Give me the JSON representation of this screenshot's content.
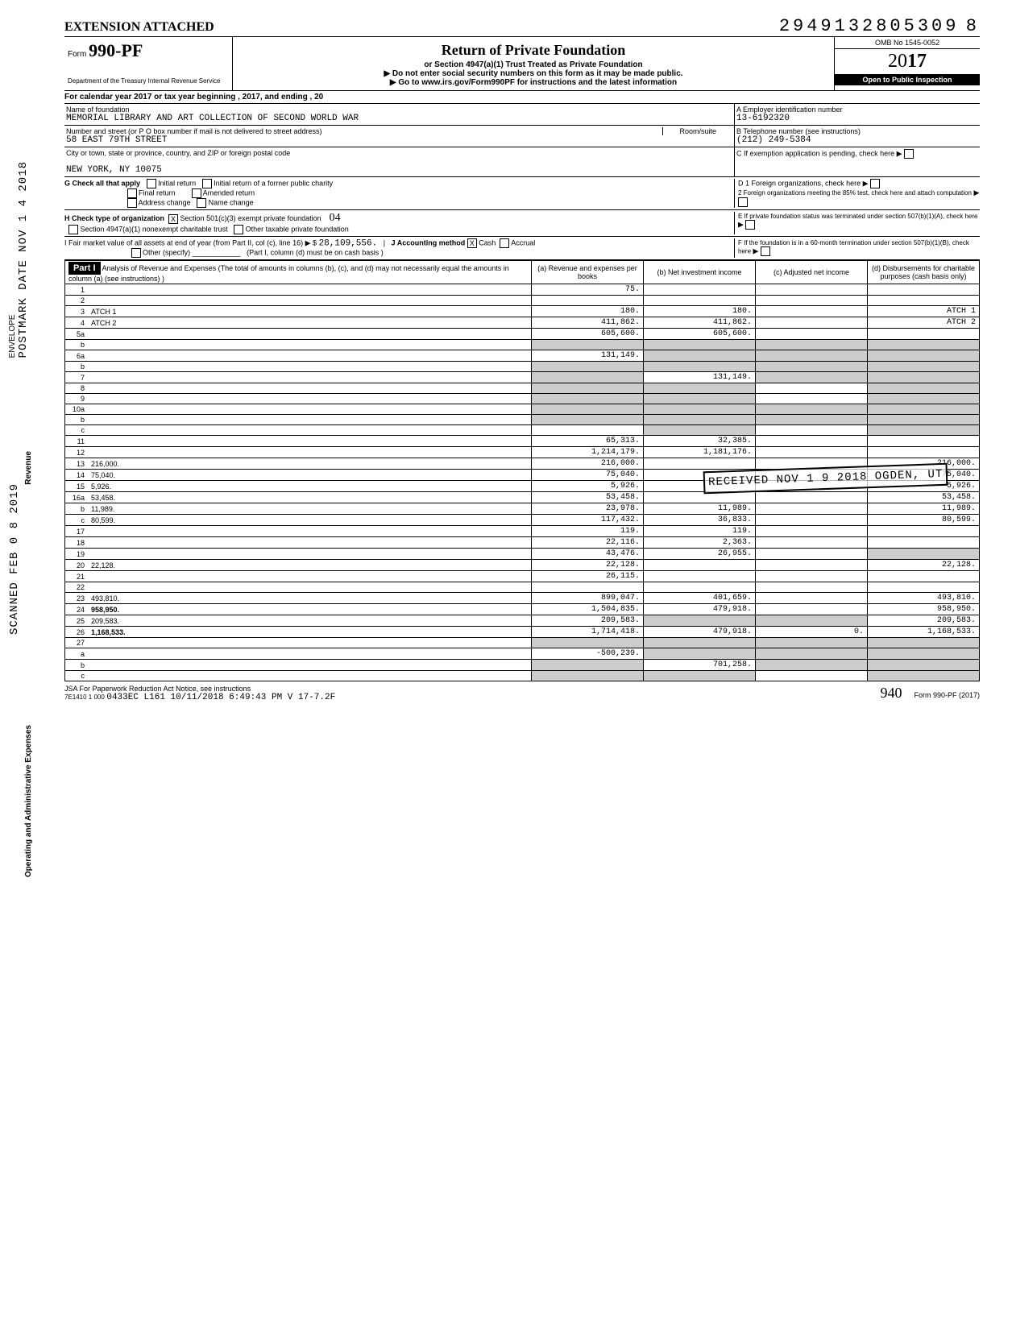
{
  "header": {
    "extension": "EXTENSION ATTACHED",
    "dln": "2949132805309",
    "dln_suffix": "8",
    "form_prefix": "Form",
    "form_num": "990-PF",
    "dept": "Department of the Treasury\nInternal Revenue Service",
    "title": "Return of Private Foundation",
    "subtitle1": "or Section 4947(a)(1) Trust Treated as Private Foundation",
    "subtitle2": "▶ Do not enter social security numbers on this form as it may be made public.",
    "subtitle3": "▶ Go to www.irs.gov/Form990PF for instructions and the latest information",
    "omb": "OMB No 1545-0052",
    "year_prefix": "20",
    "year_bold": "17",
    "inspection": "Open to Public Inspection"
  },
  "cal_year": "For calendar year 2017 or tax year beginning                                    , 2017, and ending                                    , 20",
  "name": {
    "label": "Name of foundation",
    "value": "MEMORIAL LIBRARY AND ART COLLECTION OF SECOND WORLD WAR",
    "ein_label": "A  Employer identification number",
    "ein": "13-6192320"
  },
  "addr": {
    "label": "Number and street (or P O box number if mail is not delivered to street address)",
    "room_label": "Room/suite",
    "street": "58 EAST 79TH STREET",
    "tel_label": "B  Telephone number (see instructions)",
    "tel": "(212) 249-5384",
    "city_label": "City or town, state or province, country, and ZIP or foreign postal code",
    "city": "NEW YORK, NY 10075",
    "c_label": "C  If exemption application is pending, check here"
  },
  "g": {
    "label": "G  Check all that apply",
    "initial": "Initial return",
    "initial_former": "Initial return of a former public charity",
    "final": "Final return",
    "amended": "Amended return",
    "addr_change": "Address change",
    "name_change": "Name change",
    "d1": "D  1 Foreign organizations, check here",
    "d2": "2 Foreign organizations meeting the 85% test, check here and attach computation"
  },
  "h": {
    "label": "H  Check type of organization",
    "x": "X",
    "s501": "Section 501(c)(3) exempt private foundation",
    "s4947": "Section 4947(a)(1) nonexempt charitable trust",
    "other": "Other taxable private foundation",
    "e_label": "E  If private foundation status was terminated under section 507(b)(1)(A), check here"
  },
  "i": {
    "label": "I  Fair market value of all assets at end of year (from Part II, col (c), line 16) ▶ $",
    "value": "28,109,556.",
    "j_label": "J Accounting method",
    "cash": "Cash",
    "cash_x": "X",
    "accrual": "Accrual",
    "other": "Other (specify)",
    "note": "(Part I, column (d) must be on cash basis )",
    "f_label": "F  If the foundation is in a 60‑month termination under section 507(b)(1)(B), check here"
  },
  "part1": {
    "label": "Part I",
    "title": "Analysis of Revenue and Expenses (The total of amounts in columns (b), (c), and (d) may not necessarily equal the amounts in column (a) (see instructions) )",
    "col_a": "(a) Revenue and expenses per books",
    "col_b": "(b) Net investment income",
    "col_c": "(c) Adjusted net income",
    "col_d": "(d) Disbursements for charitable purposes (cash basis only)"
  },
  "side": {
    "revenue": "Revenue",
    "expenses": "Operating and Administrative Expenses"
  },
  "rows": [
    {
      "n": "1",
      "d": "",
      "a": "75.",
      "b": "",
      "c": ""
    },
    {
      "n": "2",
      "d": "",
      "a": "",
      "b": "",
      "c": ""
    },
    {
      "n": "3",
      "d": "ATCH 1",
      "a": "180.",
      "b": "180.",
      "c": ""
    },
    {
      "n": "4",
      "d": "ATCH 2",
      "a": "411,862.",
      "b": "411,862.",
      "c": ""
    },
    {
      "n": "5a",
      "d": "",
      "a": "605,600.",
      "b": "605,600.",
      "c": ""
    },
    {
      "n": "b",
      "d": "",
      "a": "",
      "b": "",
      "c": "",
      "shade_abcd": true
    },
    {
      "n": "6a",
      "d": "",
      "a": "131,149.",
      "b": "",
      "c": "",
      "shade_bcd": true
    },
    {
      "n": "b",
      "d": "",
      "a": "",
      "b": "",
      "c": "",
      "shade_abcd": true
    },
    {
      "n": "7",
      "d": "",
      "a": "",
      "b": "131,149.",
      "c": "",
      "shade_a": true,
      "shade_cd": true
    },
    {
      "n": "8",
      "d": "",
      "a": "",
      "b": "",
      "c": "",
      "shade_ab": true,
      "shade_d": true
    },
    {
      "n": "9",
      "d": "",
      "a": "",
      "b": "",
      "c": "",
      "shade_ab": true,
      "shade_d": true
    },
    {
      "n": "10a",
      "d": "",
      "a": "",
      "b": "",
      "c": "",
      "shade_abcd": true
    },
    {
      "n": "b",
      "d": "",
      "a": "",
      "b": "",
      "c": "",
      "shade_abcd": true
    },
    {
      "n": "c",
      "d": "",
      "a": "",
      "b": "",
      "c": "",
      "shade_b": true,
      "shade_d": true
    },
    {
      "n": "11",
      "d": "",
      "a": "65,313.",
      "b": "32,385.",
      "c": ""
    },
    {
      "n": "12",
      "d": "",
      "a": "1,214,179.",
      "b": "1,181,176.",
      "c": "",
      "bold": true
    },
    {
      "n": "13",
      "d": "216,000.",
      "a": "216,000.",
      "b": "",
      "c": ""
    },
    {
      "n": "14",
      "d": "75,040.",
      "a": "75,040.",
      "b": "",
      "c": ""
    },
    {
      "n": "15",
      "d": "5,926.",
      "a": "5,926.",
      "b": "",
      "c": ""
    },
    {
      "n": "16a",
      "d": "53,458.",
      "a": "53,458.",
      "b": "",
      "c": ""
    },
    {
      "n": "b",
      "d": "11,989.",
      "a": "23,978.",
      "b": "11,989.",
      "c": ""
    },
    {
      "n": "c",
      "d": "80,599.",
      "a": "117,432.",
      "b": "36,833.",
      "c": ""
    },
    {
      "n": "17",
      "d": "",
      "a": "119.",
      "b": "119.",
      "c": ""
    },
    {
      "n": "18",
      "d": "",
      "a": "22,116.",
      "b": "2,363.",
      "c": ""
    },
    {
      "n": "19",
      "d": "",
      "a": "43,476.",
      "b": "26,955.",
      "c": "",
      "shade_d": true
    },
    {
      "n": "20",
      "d": "22,128.",
      "a": "22,128.",
      "b": "",
      "c": ""
    },
    {
      "n": "21",
      "d": "",
      "a": "26,115.",
      "b": "",
      "c": ""
    },
    {
      "n": "22",
      "d": "",
      "a": "",
      "b": "",
      "c": ""
    },
    {
      "n": "23",
      "d": "493,810.",
      "a": "899,047.",
      "b": "401,659.",
      "c": ""
    },
    {
      "n": "24",
      "d": "958,950.",
      "a": "1,504,835.",
      "b": "479,918.",
      "c": "",
      "bold": true
    },
    {
      "n": "25",
      "d": "209,583.",
      "a": "209,583.",
      "b": "",
      "c": "",
      "shade_bc": true
    },
    {
      "n": "26",
      "d": "1,168,533.",
      "a": "1,714,418.",
      "b": "479,918.",
      "c": "0.",
      "bold": true
    },
    {
      "n": "27",
      "d": "",
      "a": "",
      "b": "",
      "c": "",
      "shade_abcd": true
    },
    {
      "n": "a",
      "d": "",
      "a": "-500,239.",
      "b": "",
      "c": "",
      "shade_bcd": true,
      "bold": true
    },
    {
      "n": "b",
      "d": "",
      "a": "",
      "b": "701,258.",
      "c": "",
      "shade_a": true,
      "shade_cd": true,
      "bold": true
    },
    {
      "n": "c",
      "d": "",
      "a": "",
      "b": "",
      "c": "",
      "shade_ab": true,
      "shade_d": true,
      "bold": true
    }
  ],
  "footer": {
    "paperwork": "JSA For Paperwork Reduction Act Notice, see instructions",
    "code": "7E1410 1 000",
    "stamp": "0433EC L161  10/11/2018  6:49:43 PM   V 17-7.2F",
    "form": "Form 990-PF (2017)",
    "handwrite": "940"
  },
  "margin": {
    "postmark": "POSTMARK DATE  NOV 1 4 2018",
    "scanned": "SCANNED FEB 0 8 2019",
    "envelope": "ENVELOPE"
  },
  "received_stamp": "RECEIVED  NOV 1 9 2018  OGDEN, UT"
}
